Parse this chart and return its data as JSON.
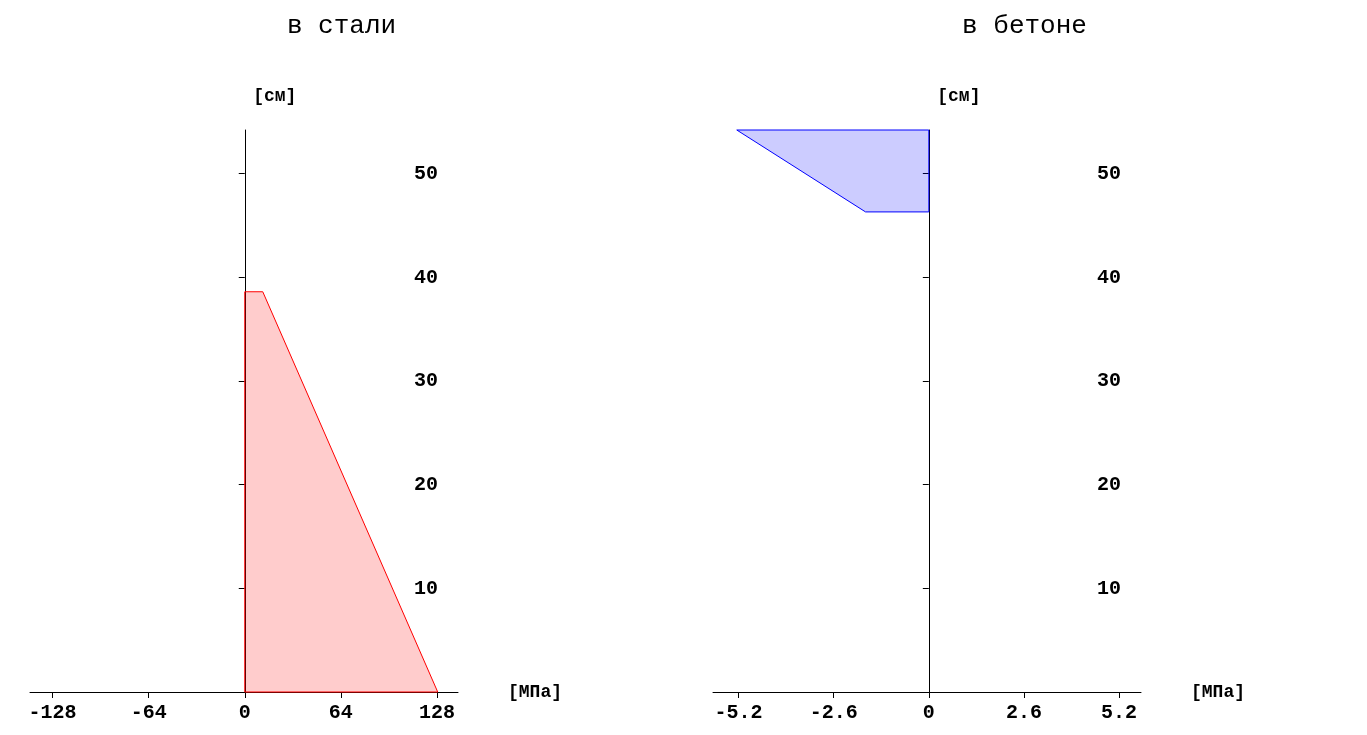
{
  "chart_data": [
    {
      "type": "area",
      "orientation": "horizontal",
      "title": "в стали",
      "xlabel": "[МПа]",
      "ylabel": "[см]",
      "series": [
        {
          "color": "#ff0000",
          "x": [
            0,
            38.6,
            38.6
          ],
          "values": [
            128.5,
            12,
            0
          ]
        }
      ],
      "xlim": [
        -143,
        142
      ],
      "xticks": [
        -128,
        -64,
        0,
        64,
        128
      ],
      "ylim": [
        0,
        54.2
      ],
      "yticks": [
        10,
        20,
        30,
        40,
        50
      ]
    },
    {
      "type": "area",
      "orientation": "horizontal",
      "title": "в бетоне",
      "xlabel": "[МПа]",
      "ylabel": "[см]",
      "series": [
        {
          "color": "#0000ff",
          "x": [
            54.2,
            46.3,
            46.3
          ],
          "values": [
            -5.25,
            -1.73,
            0
          ]
        }
      ],
      "xlim": [
        -5.9,
        5.8
      ],
      "xticks": [
        -5.2,
        -2.6,
        0,
        2.6,
        5.2
      ],
      "ylim": [
        0,
        54.2
      ],
      "yticks": [
        10,
        20,
        30,
        40,
        50
      ]
    }
  ]
}
